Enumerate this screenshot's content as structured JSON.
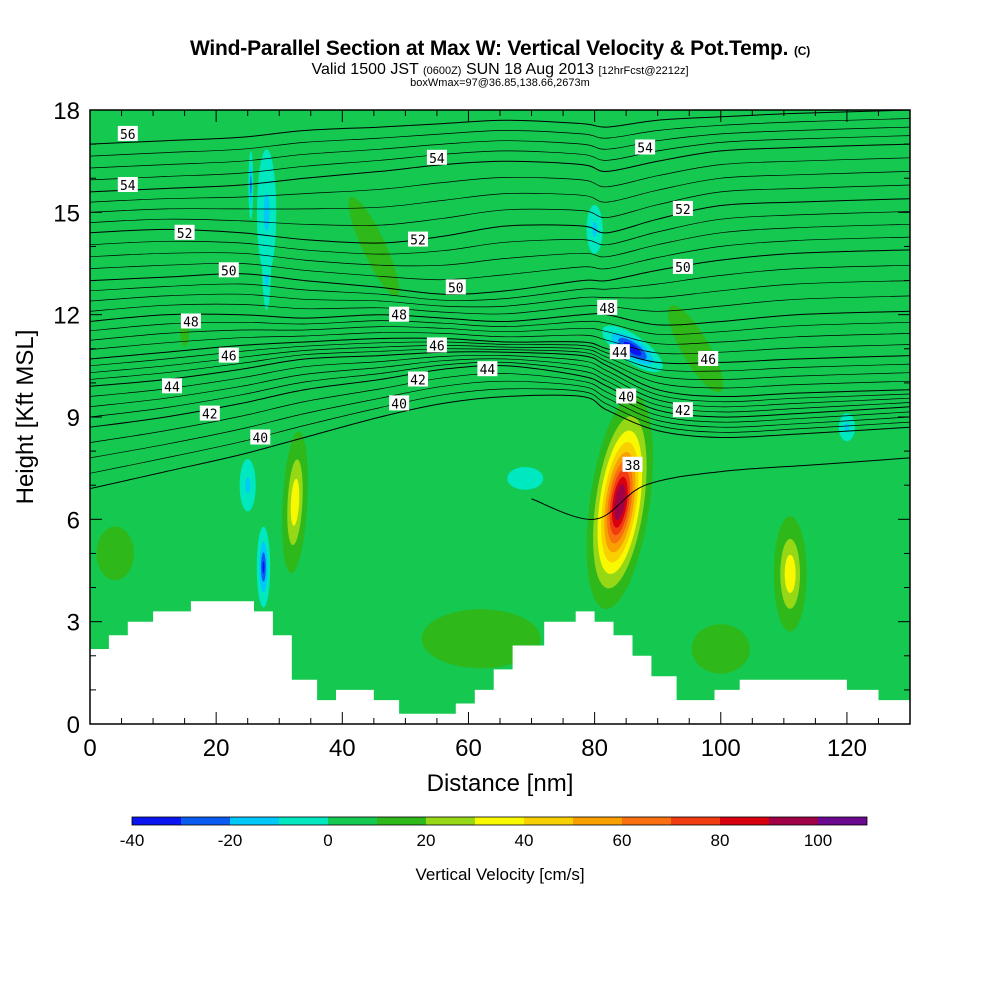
{
  "header": {
    "title_main": "Wind-Parallel Section at Max W: Vertical Velocity & Pot.Temp.",
    "title_mark": "(C)",
    "valid_a": "Valid 1500 JST",
    "valid_b": "(0600Z)",
    "valid_c": "SUN 18 Aug 2013",
    "valid_d": "[12hrFcst@2212z]",
    "box": "boxWmax=97@36.85,138.66,2673m"
  },
  "chart_data": {
    "type": "heatmap",
    "xlabel": "Distance [nm]",
    "ylabel": "Height [Kft MSL]",
    "xlim": [
      0,
      130
    ],
    "ylim": [
      0,
      18
    ],
    "x_ticks": [
      "0",
      "20",
      "40",
      "60",
      "80",
      "100",
      "120"
    ],
    "y_ticks": [
      "0",
      "3",
      "6",
      "9",
      "12",
      "15",
      "18"
    ],
    "colorbar": {
      "label": "Vertical Velocity [cm/s]",
      "boundaries": [
        -40,
        -30,
        -20,
        -10,
        0,
        10,
        20,
        30,
        40,
        50,
        60,
        70,
        80,
        90,
        100,
        110
      ],
      "colors": [
        "#0a14f0",
        "#0a5cf0",
        "#00c8f8",
        "#00e8c0",
        "#14c850",
        "#2eb81a",
        "#96d816",
        "#f8f800",
        "#f8d000",
        "#f8a000",
        "#f87010",
        "#f03c10",
        "#d80010",
        "#a00046",
        "#6a0890"
      ],
      "tick_labels": [
        "-40",
        "-20",
        "0",
        "20",
        "40",
        "60",
        "80",
        "100"
      ]
    },
    "background_value": 5,
    "w_features": [
      {
        "cx": 84,
        "cy": 6.5,
        "rx": 6,
        "ry": 4,
        "rot": 8,
        "peak": 97
      },
      {
        "cx": 32.5,
        "cy": 6.5,
        "rx": 3,
        "ry": 3.2,
        "rot": 3,
        "peak": 38
      },
      {
        "cx": 111,
        "cy": 4.4,
        "rx": 4,
        "ry": 2.6,
        "rot": 0,
        "peak": 38
      },
      {
        "cx": 69,
        "cy": 7.2,
        "rx": 12,
        "ry": 1.4,
        "rot": 0,
        "peak": -2
      },
      {
        "cx": 86,
        "cy": 11,
        "rx": 3,
        "ry": 1.5,
        "rot": -55,
        "peak": -40
      },
      {
        "cx": 28,
        "cy": 13.7,
        "rx": 1.2,
        "ry": 2.5,
        "rot": 0,
        "peak": -24
      },
      {
        "cx": 25.5,
        "cy": 15.8,
        "rx": 0.6,
        "ry": 1.6,
        "rot": 0,
        "peak": -24
      },
      {
        "cx": 27.5,
        "cy": 4.6,
        "rx": 1.6,
        "ry": 1.8,
        "rot": 0,
        "peak": -30
      },
      {
        "cx": 25,
        "cy": 7,
        "rx": 2.5,
        "ry": 1.5,
        "rot": 0,
        "peak": -12
      },
      {
        "cx": 28,
        "cy": 15,
        "rx": 3,
        "ry": 3.6,
        "rot": 0,
        "peak": -12
      },
      {
        "cx": 80,
        "cy": 14.5,
        "rx": 2.5,
        "ry": 1.4,
        "rot": 0,
        "peak": -12
      },
      {
        "cx": 120,
        "cy": 8.7,
        "rx": 2.5,
        "ry": 0.8,
        "rot": 0,
        "peak": -12
      },
      {
        "cx": 45,
        "cy": 14,
        "rx": 5,
        "ry": 4.4,
        "rot": -25,
        "peak": 15
      },
      {
        "cx": 96,
        "cy": 11,
        "rx": 6,
        "ry": 4,
        "rot": -30,
        "peak": 15
      },
      {
        "cx": 4,
        "cy": 5,
        "rx": 9,
        "ry": 2.4,
        "rot": 0,
        "peak": 14
      },
      {
        "cx": 62,
        "cy": 2.5,
        "rx": 24,
        "ry": 2.2,
        "rot": 0,
        "peak": 16
      },
      {
        "cx": 100,
        "cy": 2.2,
        "rx": 14,
        "ry": 2.2,
        "rot": 0,
        "peak": 14
      },
      {
        "cx": 15,
        "cy": 11.5,
        "rx": 3,
        "ry": 1.8,
        "rot": 0,
        "peak": 12
      }
    ],
    "theta_isentropes": [
      {
        "level": 38,
        "x": [
          70,
          80,
          88,
          100,
          115,
          130
        ],
        "y": [
          6.6,
          6.0,
          7.0,
          7.4,
          7.6,
          7.8
        ]
      },
      {
        "level": 40,
        "x": [
          0,
          12,
          24,
          34,
          46,
          56,
          66,
          78,
          82,
          90,
          100,
          112,
          130
        ],
        "y": [
          6.9,
          7.4,
          7.9,
          8.4,
          9.0,
          9.4,
          9.6,
          9.6,
          9.2,
          8.6,
          8.4,
          8.5,
          8.7
        ]
      },
      {
        "level": 42,
        "x": [
          0,
          12,
          24,
          34,
          46,
          56,
          66,
          78,
          82,
          90,
          100,
          112,
          130
        ],
        "y": [
          8.7,
          9.0,
          9.4,
          9.8,
          10.1,
          10.4,
          10.5,
          10.2,
          9.9,
          9.2,
          9.0,
          9.1,
          9.3
        ]
      },
      {
        "level": 44,
        "x": [
          0,
          12,
          24,
          34,
          46,
          56,
          66,
          78,
          82,
          90,
          100,
          112,
          130
        ],
        "y": [
          9.9,
          10.1,
          10.4,
          10.7,
          10.8,
          10.9,
          10.9,
          10.8,
          10.5,
          9.8,
          9.6,
          9.7,
          9.8
        ]
      },
      {
        "level": 46,
        "x": [
          0,
          12,
          24,
          34,
          46,
          56,
          66,
          78,
          82,
          90,
          100,
          112,
          130
        ],
        "y": [
          10.7,
          10.9,
          11.1,
          11.2,
          11.3,
          11.3,
          11.2,
          11.2,
          11.0,
          10.6,
          10.6,
          10.7,
          10.8
        ]
      },
      {
        "level": 48,
        "x": [
          0,
          12,
          24,
          34,
          46,
          56,
          66,
          78,
          82,
          90,
          100,
          112,
          130
        ],
        "y": [
          11.8,
          12.0,
          12.0,
          11.9,
          12.0,
          11.9,
          11.8,
          12.0,
          12.0,
          11.7,
          11.8,
          12.0,
          12.1
        ]
      },
      {
        "level": 50,
        "x": [
          0,
          12,
          24,
          34,
          46,
          56,
          66,
          78,
          82,
          90,
          100,
          112,
          130
        ],
        "y": [
          13.0,
          13.1,
          13.2,
          13.0,
          12.8,
          12.6,
          12.7,
          13.0,
          13.0,
          13.3,
          13.6,
          13.8,
          13.9
        ]
      },
      {
        "level": 52,
        "x": [
          0,
          12,
          24,
          34,
          46,
          56,
          66,
          78,
          82,
          90,
          100,
          112,
          130
        ],
        "y": [
          14.4,
          14.5,
          14.4,
          14.2,
          14.1,
          14.3,
          14.6,
          14.6,
          14.4,
          14.8,
          15.2,
          15.3,
          15.4
        ]
      },
      {
        "level": 54,
        "x": [
          0,
          12,
          24,
          34,
          46,
          56,
          66,
          78,
          82,
          90,
          100,
          112,
          130
        ],
        "y": [
          15.6,
          15.7,
          15.8,
          16.0,
          16.2,
          16.4,
          16.5,
          16.4,
          16.2,
          16.5,
          16.8,
          16.9,
          17.0
        ]
      },
      {
        "level": 56,
        "x": [
          0,
          12,
          24,
          34,
          46,
          56,
          66,
          78,
          82,
          90,
          100,
          112,
          130
        ],
        "y": [
          17.0,
          17.1,
          17.2,
          17.4,
          17.5,
          17.6,
          17.7,
          17.6,
          17.5,
          17.7,
          17.8,
          17.9,
          18.0
        ]
      }
    ],
    "contour_labels": [
      {
        "text": "56",
        "x": 6,
        "y": 17.3
      },
      {
        "text": "54",
        "x": 6,
        "y": 15.8
      },
      {
        "text": "54",
        "x": 55,
        "y": 16.6
      },
      {
        "text": "54",
        "x": 88,
        "y": 16.9
      },
      {
        "text": "52",
        "x": 15,
        "y": 14.4
      },
      {
        "text": "52",
        "x": 52,
        "y": 14.2
      },
      {
        "text": "52",
        "x": 94,
        "y": 15.1
      },
      {
        "text": "50",
        "x": 22,
        "y": 13.3
      },
      {
        "text": "50",
        "x": 58,
        "y": 12.8
      },
      {
        "text": "50",
        "x": 94,
        "y": 13.4
      },
      {
        "text": "48",
        "x": 16,
        "y": 11.8
      },
      {
        "text": "48",
        "x": 49,
        "y": 12.0
      },
      {
        "text": "48",
        "x": 82,
        "y": 12.2
      },
      {
        "text": "46",
        "x": 22,
        "y": 10.8
      },
      {
        "text": "46",
        "x": 55,
        "y": 11.1
      },
      {
        "text": "46",
        "x": 98,
        "y": 10.7
      },
      {
        "text": "44",
        "x": 13,
        "y": 9.9
      },
      {
        "text": "44",
        "x": 63,
        "y": 10.4
      },
      {
        "text": "44",
        "x": 84,
        "y": 10.9
      },
      {
        "text": "42",
        "x": 19,
        "y": 9.1
      },
      {
        "text": "42",
        "x": 52,
        "y": 10.1
      },
      {
        "text": "42",
        "x": 94,
        "y": 9.2
      },
      {
        "text": "40",
        "x": 27,
        "y": 8.4
      },
      {
        "text": "40",
        "x": 49,
        "y": 9.4
      },
      {
        "text": "40",
        "x": 85,
        "y": 9.6
      },
      {
        "text": "38",
        "x": 86,
        "y": 7.6
      }
    ],
    "terrain": {
      "x": [
        0,
        0,
        3,
        3,
        6,
        6,
        10,
        10,
        16,
        16,
        21,
        21,
        26,
        26,
        29,
        29,
        32,
        32,
        36,
        36,
        39,
        39,
        45,
        45,
        49,
        49,
        55,
        55,
        58,
        58,
        61,
        61,
        64,
        64,
        67,
        67,
        72,
        72,
        77,
        77,
        80,
        80,
        83,
        83,
        86,
        86,
        89,
        89,
        93,
        93,
        99,
        99,
        103,
        103,
        110,
        110,
        115,
        115,
        120,
        120,
        125,
        125,
        130,
        130
      ],
      "y": [
        0,
        2.2,
        2.2,
        2.6,
        2.6,
        3.0,
        3.0,
        3.3,
        3.3,
        3.6,
        3.6,
        3.6,
        3.6,
        3.3,
        3.3,
        2.6,
        2.6,
        1.3,
        1.3,
        0.7,
        0.7,
        1.0,
        1.0,
        0.7,
        0.7,
        0.3,
        0.3,
        0.3,
        0.3,
        0.6,
        0.6,
        1.0,
        1.0,
        1.6,
        1.6,
        2.3,
        2.3,
        3.0,
        3.0,
        3.3,
        3.3,
        3.0,
        3.0,
        2.6,
        2.6,
        2.0,
        2.0,
        1.4,
        1.4,
        0.7,
        0.7,
        1.0,
        1.0,
        1.3,
        1.3,
        1.3,
        1.3,
        1.3,
        1.3,
        1.0,
        1.0,
        0.7,
        0.7,
        0
      ]
    }
  }
}
